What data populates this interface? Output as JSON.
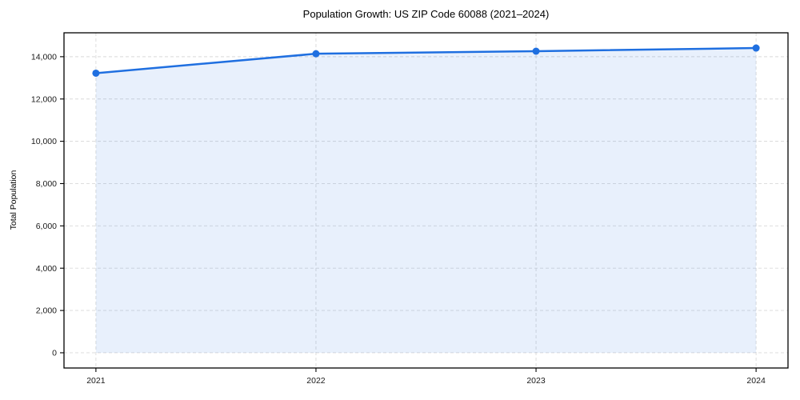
{
  "figure": {
    "background": "#ffffff"
  },
  "chart_data": {
    "type": "line",
    "title": "Population Growth: US ZIP Code 60088 (2021–2024)",
    "xlabel": "",
    "ylabel": "Total Population",
    "x": [
      2021,
      2022,
      2023,
      2024
    ],
    "x_tick_labels": [
      "2021",
      "2022",
      "2023",
      "2024"
    ],
    "series": [
      {
        "name": "Total Population",
        "values": [
          13220,
          14140,
          14260,
          14410
        ]
      }
    ],
    "y_ticks": [
      0,
      2000,
      4000,
      6000,
      8000,
      10000,
      12000,
      14000
    ],
    "y_tick_labels": [
      "0",
      "2,000",
      "4,000",
      "6,000",
      "8,000",
      "10,000",
      "12,000",
      "14,000"
    ],
    "xlim": [
      2020.855,
      2024.145
    ],
    "ylim": [
      -720,
      15130
    ],
    "grid": true,
    "legend": "none",
    "area_fill": true,
    "colors": {
      "line": "#1f6fe0",
      "marker": "#1f6fe0",
      "fill": "#2170e0",
      "fill_opacity": 0.1,
      "grid": "#d9d9d9",
      "spine": "#000000",
      "tick": "#000000"
    }
  }
}
